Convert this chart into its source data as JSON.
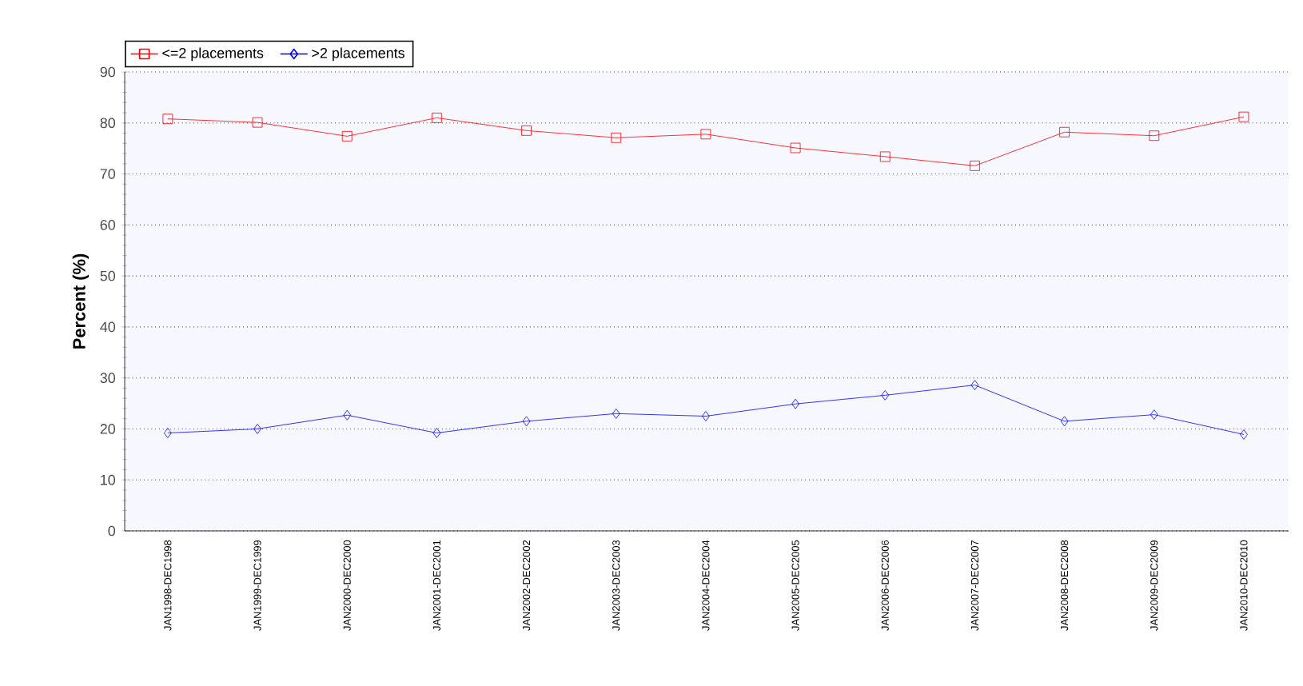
{
  "chart_data": {
    "type": "line",
    "ylabel": "Percent (%)",
    "categories": [
      "JAN1998-DEC1998",
      "JAN1999-DEC1999",
      "JAN2000-DEC2000",
      "JAN2001-DEC2001",
      "JAN2002-DEC2002",
      "JAN2003-DEC2003",
      "JAN2004-DEC2004",
      "JAN2005-DEC2005",
      "JAN2006-DEC2006",
      "JAN2007-DEC2007",
      "JAN2008-DEC2008",
      "JAN2009-DEC2009",
      "JAN2010-DEC2010"
    ],
    "series": [
      {
        "name": "<=2 placements",
        "color": "#ff0000",
        "marker": "square",
        "values": [
          80.8,
          80.1,
          77.4,
          81.0,
          78.5,
          77.1,
          77.8,
          75.1,
          73.4,
          71.6,
          78.2,
          77.5,
          81.2
        ]
      },
      {
        "name": ">2 placements",
        "color": "#0000ff",
        "marker": "diamond",
        "values": [
          19.2,
          20.0,
          22.7,
          19.2,
          21.5,
          23.0,
          22.5,
          24.9,
          26.6,
          28.6,
          21.5,
          22.8,
          18.9
        ]
      }
    ],
    "ylim": [
      0,
      90
    ],
    "yticks": [
      0,
      10,
      20,
      30,
      40,
      50,
      60,
      70,
      80,
      90
    ],
    "grid": "y",
    "legend": "top left"
  }
}
